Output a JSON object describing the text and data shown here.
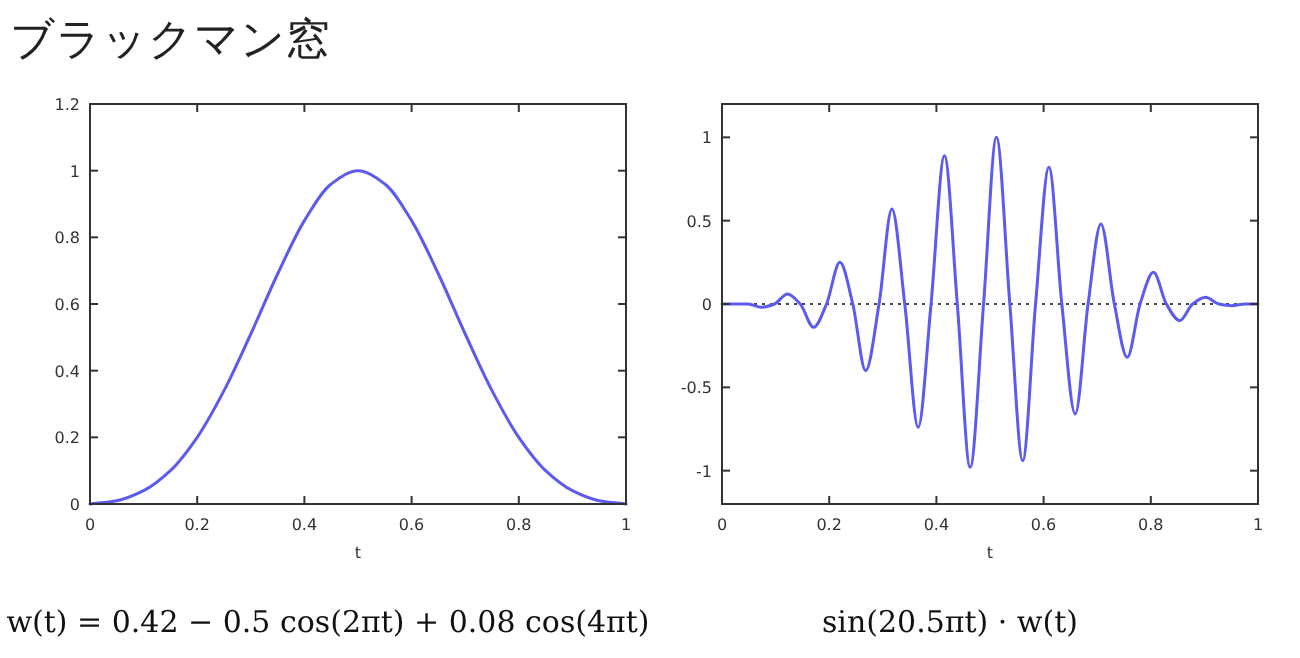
{
  "chart_data": [
    {
      "type": "line",
      "title": "ブラックマン窓",
      "xlabel": "t",
      "xlim": [
        0,
        1
      ],
      "ylim": [
        0,
        1.2
      ],
      "xticks": [
        0,
        0.2,
        0.4,
        0.6,
        0.8,
        1
      ],
      "yticks": [
        0,
        0.2,
        0.4,
        0.6,
        0.8,
        1,
        1.2
      ],
      "x": [
        0,
        0.05,
        0.1,
        0.15,
        0.2,
        0.25,
        0.3,
        0.35,
        0.4,
        0.45,
        0.5,
        0.55,
        0.6,
        0.65,
        0.7,
        0.75,
        0.8,
        0.85,
        0.9,
        0.95,
        1
      ],
      "series": [
        {
          "color": "#5b5bf0",
          "values": [
            0,
            0.01,
            0.04,
            0.1,
            0.2,
            0.34,
            0.51,
            0.69,
            0.85,
            0.96,
            1.0,
            0.96,
            0.85,
            0.69,
            0.51,
            0.34,
            0.2,
            0.1,
            0.04,
            0.01,
            0
          ]
        }
      ],
      "annotations": [
        "w(t) = 0.42 − 0.5 cos(2πt) + 0.08 cos(4πt)"
      ]
    },
    {
      "type": "line",
      "xlabel": "t",
      "xlim": [
        0,
        1
      ],
      "ylim": [
        -1.2,
        1.2
      ],
      "xticks": [
        0,
        0.2,
        0.4,
        0.6,
        0.8,
        1
      ],
      "yticks": [
        -1,
        -0.5,
        0,
        0.5,
        1
      ],
      "x": [
        0,
        0.024,
        0.049,
        0.073,
        0.098,
        0.122,
        0.146,
        0.171,
        0.195,
        0.22,
        0.244,
        0.268,
        0.293,
        0.317,
        0.341,
        0.366,
        0.39,
        0.415,
        0.439,
        0.463,
        0.488,
        0.512,
        0.537,
        0.561,
        0.585,
        0.61,
        0.634,
        0.659,
        0.683,
        0.707,
        0.732,
        0.756,
        0.78,
        0.805,
        0.829,
        0.854,
        0.878,
        0.902,
        0.927,
        0.951,
        0.976,
        1
      ],
      "series": [
        {
          "color": "#5b5bf0",
          "values": [
            0,
            0,
            0,
            -0.02,
            0,
            0.06,
            0,
            -0.14,
            0,
            0.25,
            0,
            -0.4,
            0,
            0.57,
            0,
            -0.74,
            0,
            0.89,
            0,
            -0.98,
            0,
            1.0,
            0,
            -0.94,
            0,
            0.82,
            0,
            -0.66,
            0,
            0.48,
            0,
            -0.32,
            0,
            0.19,
            0,
            -0.1,
            0,
            0.04,
            0,
            -0.01,
            0,
            0
          ]
        }
      ],
      "ref_lines": [
        {
          "axis": "y",
          "value": 0,
          "color": "#444444",
          "line_style": "dotted"
        }
      ],
      "annotations": [
        "sin(20.5πt) · w(t)"
      ]
    }
  ]
}
